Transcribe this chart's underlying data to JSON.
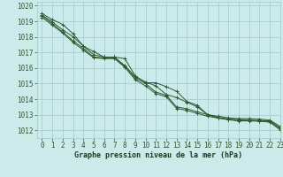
{
  "bg_color": "#cceaea",
  "grid_color": "#99cccc",
  "line_color": "#2d5a2d",
  "marker_color": "#2d5a2d",
  "xlabel": "Graphe pression niveau de la mer (hPa)",
  "xlabel_color": "#1a3a1a",
  "ylim": [
    1011.5,
    1020.25
  ],
  "xlim": [
    -0.5,
    23
  ],
  "yticks": [
    1012,
    1013,
    1014,
    1015,
    1016,
    1017,
    1018,
    1019,
    1020
  ],
  "xticks": [
    0,
    1,
    2,
    3,
    4,
    5,
    6,
    7,
    8,
    9,
    10,
    11,
    12,
    13,
    14,
    15,
    16,
    17,
    18,
    19,
    20,
    21,
    22,
    23
  ],
  "series": [
    [
      1019.5,
      1019.1,
      1018.8,
      1018.2,
      1017.4,
      1017.05,
      1016.7,
      1016.7,
      1016.6,
      1015.5,
      1015.05,
      1015.05,
      1014.8,
      1014.5,
      1013.85,
      1013.6,
      1013.0,
      1012.9,
      1012.8,
      1012.75,
      1012.75,
      1012.72,
      1012.65,
      1012.25
    ],
    [
      1019.4,
      1018.95,
      1018.45,
      1018.0,
      1017.4,
      1016.85,
      1016.7,
      1016.7,
      1016.15,
      1015.45,
      1015.1,
      1014.85,
      1014.3,
      1014.1,
      1013.8,
      1013.5,
      1013.0,
      1012.82,
      1012.72,
      1012.68,
      1012.65,
      1012.63,
      1012.6,
      1012.15
    ],
    [
      1019.35,
      1018.85,
      1018.3,
      1017.75,
      1017.25,
      1016.7,
      1016.65,
      1016.65,
      1016.1,
      1015.35,
      1015.0,
      1014.45,
      1014.25,
      1013.5,
      1013.38,
      1013.18,
      1013.0,
      1012.8,
      1012.7,
      1012.62,
      1012.62,
      1012.6,
      1012.57,
      1012.1
    ],
    [
      1019.25,
      1018.75,
      1018.25,
      1017.65,
      1017.15,
      1016.65,
      1016.6,
      1016.6,
      1016.05,
      1015.25,
      1014.85,
      1014.35,
      1014.15,
      1013.4,
      1013.28,
      1013.08,
      1012.9,
      1012.78,
      1012.68,
      1012.6,
      1012.6,
      1012.58,
      1012.52,
      1012.02
    ]
  ],
  "marker": "+",
  "linewidth": 0.7,
  "markersize": 3.5,
  "tick_fontsize": 5.5,
  "xlabel_fontsize": 6.0
}
